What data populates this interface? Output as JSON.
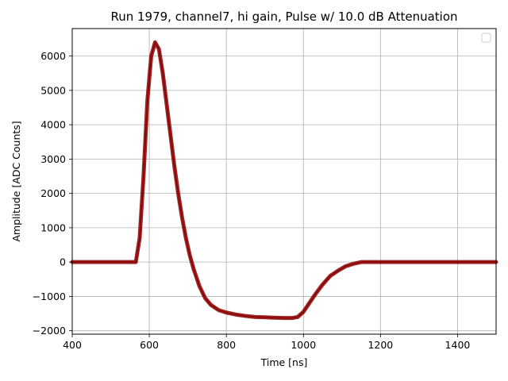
{
  "chart_data": {
    "type": "line",
    "title": "Run 1979, channel7, hi gain, Pulse w/ 10.0 dB Attenuation",
    "xlabel": "Time [ns]",
    "ylabel": "Amplitude [ADC Counts]",
    "xlim": [
      400,
      1500
    ],
    "ylim": [
      -2100,
      6800
    ],
    "xticks": [
      400,
      600,
      800,
      1000,
      1200,
      1400
    ],
    "yticks": [
      -2000,
      -1000,
      0,
      1000,
      2000,
      3000,
      4000,
      5000,
      6000
    ],
    "xtick_labels": [
      "400",
      "600",
      "800",
      "1000",
      "1200",
      "1400"
    ],
    "ytick_labels": [
      "−2000",
      "−1000",
      "0",
      "1000",
      "2000",
      "3000",
      "4000",
      "5000",
      "6000"
    ],
    "grid": true,
    "legend": "top-right (empty)",
    "series_color": "#8b0000",
    "series": [
      {
        "x": [
          400,
          450,
          500,
          550,
          565,
          575,
          585,
          595,
          605,
          615,
          625,
          635,
          645,
          655,
          665,
          675,
          685,
          695,
          705,
          715,
          730,
          745,
          760,
          780,
          800,
          825,
          850,
          875,
          900,
          925,
          950,
          970,
          985,
          1000,
          1015,
          1030,
          1050,
          1070,
          1090,
          1110,
          1130,
          1150,
          1175,
          1200,
          1250,
          1300,
          1350,
          1400,
          1450,
          1500
        ],
        "y": [
          0,
          0,
          0,
          0,
          0,
          700,
          2500,
          4700,
          6000,
          6400,
          6200,
          5500,
          4600,
          3700,
          2800,
          2000,
          1300,
          700,
          200,
          -200,
          -700,
          -1050,
          -1250,
          -1400,
          -1470,
          -1530,
          -1570,
          -1600,
          -1610,
          -1620,
          -1630,
          -1630,
          -1600,
          -1450,
          -1200,
          -950,
          -650,
          -400,
          -250,
          -120,
          -50,
          0,
          0,
          0,
          0,
          0,
          0,
          0,
          0,
          0
        ]
      }
    ]
  }
}
